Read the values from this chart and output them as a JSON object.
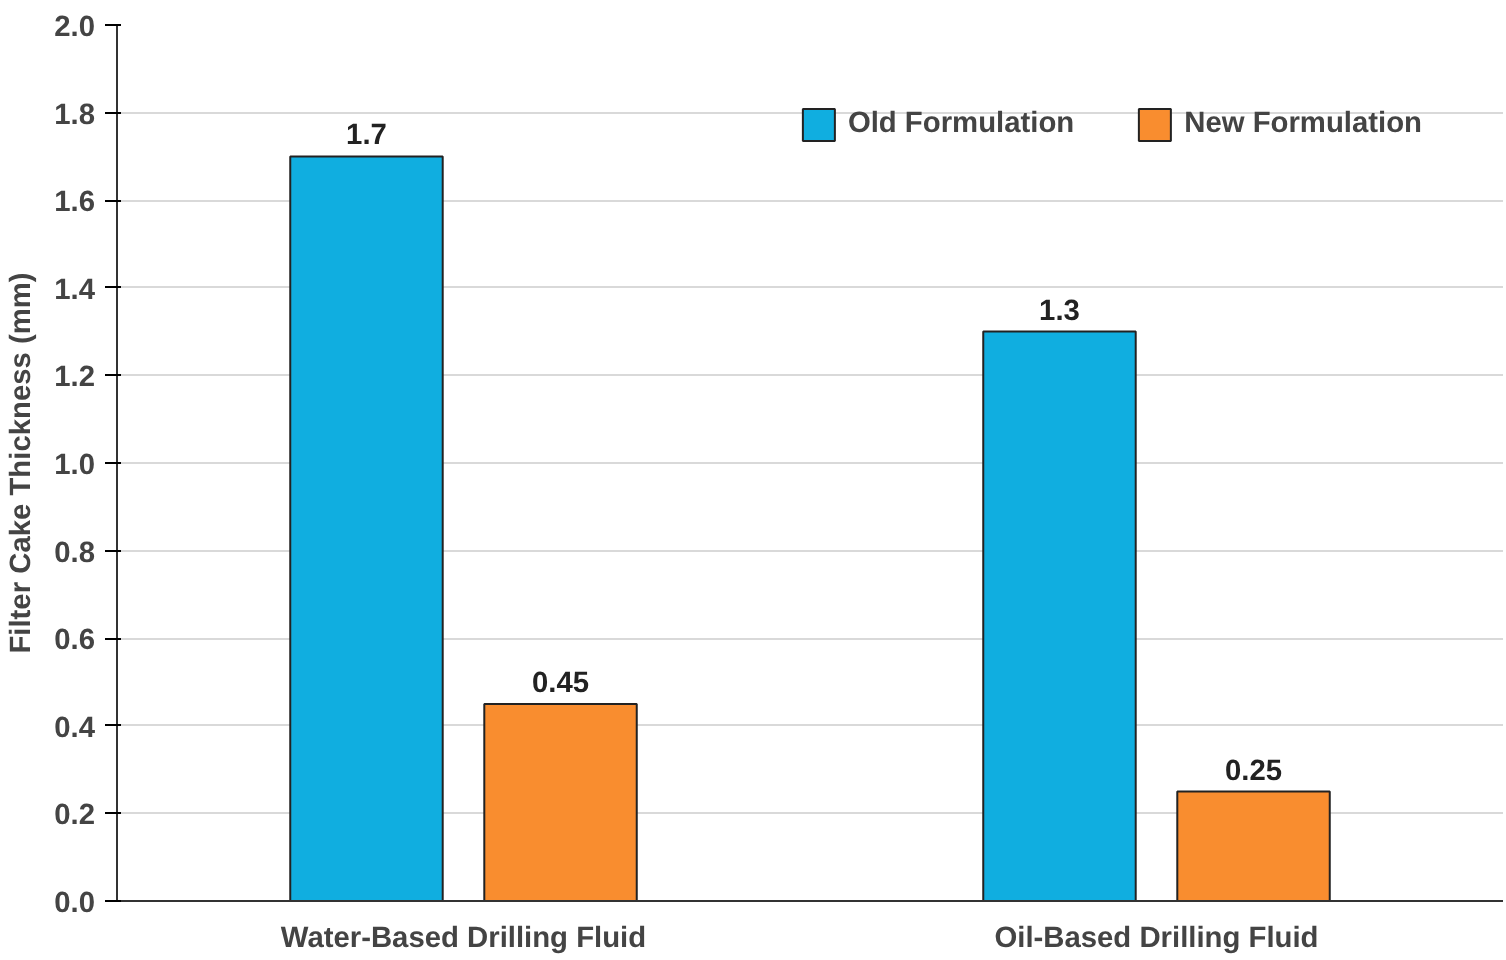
{
  "chart_data": {
    "type": "bar",
    "ylabel": "Filter Cake Thickness (mm)",
    "categories": [
      "Water-Based Drilling Fluid",
      "Oil-Based Drilling Fluid"
    ],
    "series": [
      {
        "name": "Old Formulation",
        "color": "#10aee0",
        "values": [
          1.7,
          1.3
        ]
      },
      {
        "name": "New Formulation",
        "color": "#f98d2f",
        "values": [
          0.45,
          0.25
        ]
      }
    ],
    "ylim": [
      0,
      2
    ],
    "yticks": [
      {
        "value": 0,
        "label": "0.0"
      },
      {
        "value": 0.2,
        "label": "0.2"
      },
      {
        "value": 0.4,
        "label": "0.4"
      },
      {
        "value": 0.6,
        "label": "0.6"
      },
      {
        "value": 0.8,
        "label": "0.8"
      },
      {
        "value": 1.0,
        "label": "1.0"
      },
      {
        "value": 1.2,
        "label": "1.2"
      },
      {
        "value": 1.4,
        "label": "1.4"
      },
      {
        "value": 1.6,
        "label": "1.6"
      },
      {
        "value": 1.8,
        "label": "1.8"
      },
      {
        "value": 2.0,
        "label": "2.0"
      }
    ],
    "grid": "y",
    "legend": "top right",
    "data_labels": true
  }
}
